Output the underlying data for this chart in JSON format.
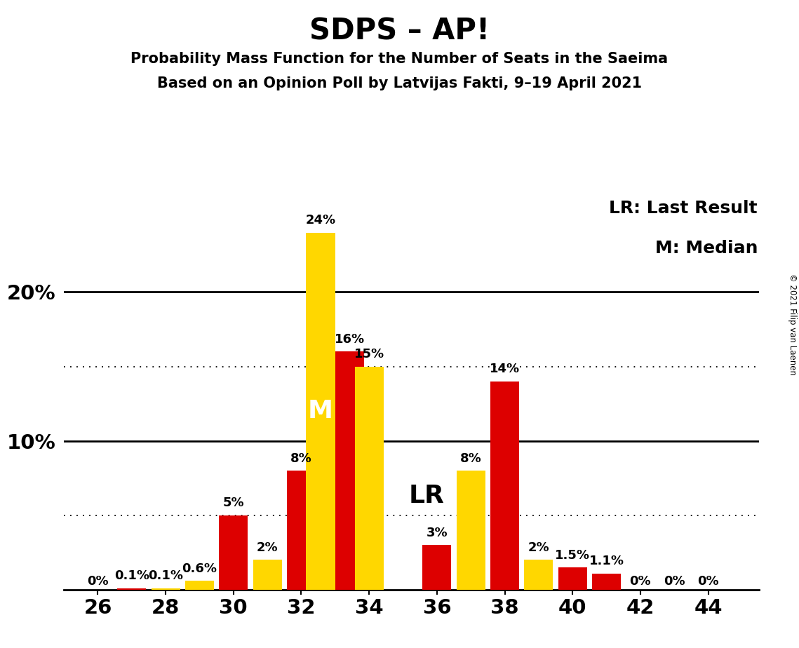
{
  "title": "SDPS – AP!",
  "subtitle1": "Probability Mass Function for the Number of Seats in the Saeima",
  "subtitle2": "Based on an Opinion Poll by Latvijas Fakti, 9–19 April 2021",
  "copyright": "© 2021 Filip van Laenen",
  "legend_lr": "LR: Last Result",
  "legend_m": "M: Median",
  "label_lr": "LR",
  "label_m": "M",
  "background_color": "#FFFFFF",
  "bar_color_red": "#DD0000",
  "bar_color_yellow": "#FFD700",
  "dotted_line_1": 5.0,
  "dotted_line_2": 15.0,
  "solid_line_1": 10.0,
  "solid_line_2": 20.0,
  "ylim_max": 27,
  "xlim": [
    25.0,
    45.5
  ],
  "seats": [
    26,
    27,
    28,
    29,
    30,
    31,
    32,
    33,
    34,
    35,
    36,
    37,
    38,
    39,
    40,
    41,
    42,
    43,
    44
  ],
  "red_values": [
    0.0,
    0.1,
    0.0,
    0.0,
    5.0,
    0.0,
    8.0,
    16.0,
    0.0,
    0.0,
    3.0,
    0.0,
    14.0,
    0.0,
    1.5,
    1.1,
    0.0,
    0.0,
    0.0
  ],
  "yellow_values": [
    0.0,
    0.0,
    0.1,
    0.6,
    0.0,
    2.0,
    0.0,
    24.0,
    15.0,
    0.0,
    0.0,
    8.0,
    0.0,
    2.0,
    0.0,
    0.0,
    0.0,
    0.0,
    0.0
  ],
  "red_show_label": [
    false,
    true,
    false,
    false,
    true,
    false,
    true,
    true,
    false,
    false,
    true,
    false,
    true,
    false,
    true,
    true,
    false,
    false,
    false
  ],
  "yellow_show_label": [
    true,
    false,
    true,
    true,
    false,
    true,
    false,
    true,
    true,
    false,
    false,
    true,
    false,
    true,
    false,
    false,
    true,
    true,
    true
  ],
  "red_label_vals": [
    "0%",
    "0.1%",
    "",
    "",
    "5%",
    "",
    "8%",
    "16%",
    "",
    "",
    "3%",
    "",
    "14%",
    "",
    "1.5%",
    "1.1%",
    "",
    "",
    ""
  ],
  "yellow_label_vals": [
    "0%",
    "",
    "0.1%",
    "0.6%",
    "",
    "2%",
    "",
    "24%",
    "15%",
    "",
    "",
    "8%",
    "",
    "2%",
    "",
    "",
    "0%",
    "0%",
    "0%"
  ],
  "bar_width": 0.85,
  "median_seat": 33,
  "lr_seat": 36,
  "font_size_title": 30,
  "font_size_subtitle": 15,
  "font_size_tick": 21,
  "font_size_bar_label": 13,
  "font_size_legend": 18,
  "font_size_marker": 26
}
